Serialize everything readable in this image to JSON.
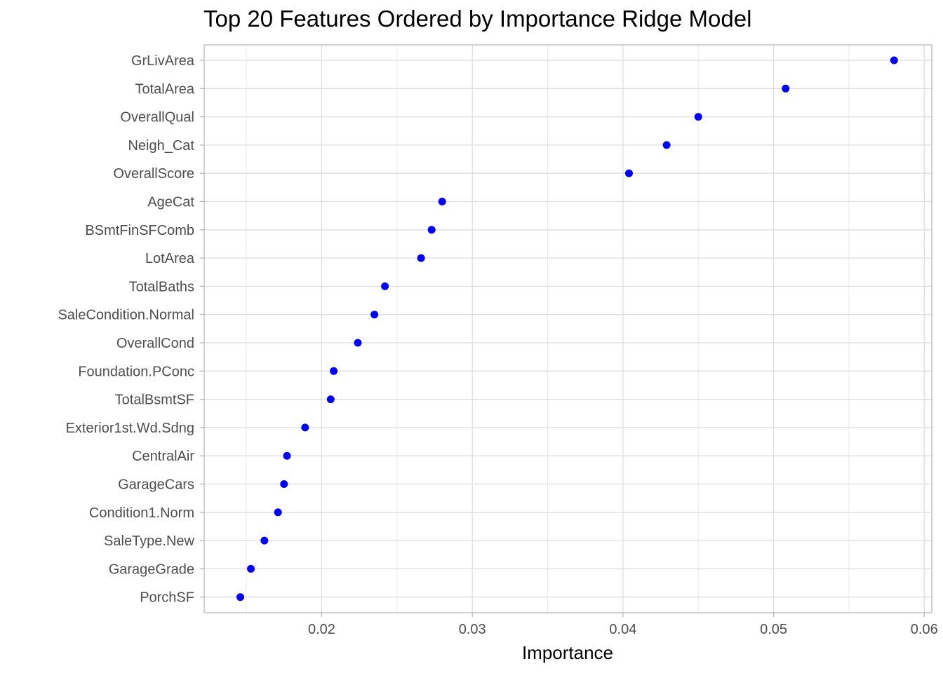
{
  "chart_data": {
    "type": "scatter",
    "title": "Top 20 Features Ordered by Importance Ridge Model",
    "xlabel": "Importance",
    "ylabel": "",
    "xlim": [
      0.0122,
      0.0605
    ],
    "xticks": [
      0.02,
      0.03,
      0.04,
      0.05,
      0.06
    ],
    "xtick_labels": [
      "0.02",
      "0.03",
      "0.04",
      "0.05",
      "0.06"
    ],
    "grid": true,
    "point_color": "#0000ff",
    "categories": [
      "GrLivArea",
      "TotalArea",
      "OverallQual",
      "Neigh_Cat",
      "OverallScore",
      "AgeCat",
      "BSmtFinSFComb",
      "LotArea",
      "TotalBaths",
      "SaleCondition.Normal",
      "OverallCond",
      "Foundation.PConc",
      "TotalBsmtSF",
      "Exterior1st.Wd.Sdng",
      "CentralAir",
      "GarageCars",
      "Condition1.Norm",
      "SaleType.New",
      "GarageGrade",
      "PorchSF"
    ],
    "values": [
      0.058,
      0.0508,
      0.045,
      0.0429,
      0.0404,
      0.028,
      0.0273,
      0.0266,
      0.0242,
      0.0235,
      0.0224,
      0.0208,
      0.0206,
      0.0189,
      0.0177,
      0.0175,
      0.0171,
      0.0162,
      0.0153,
      0.0146
    ]
  }
}
